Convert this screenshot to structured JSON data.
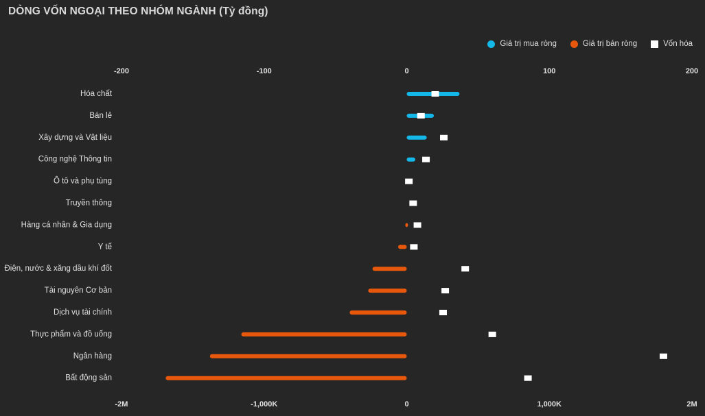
{
  "chart_data": {
    "type": "bar",
    "title": "DÒNG VỐN NGOẠI THEO NHÓM NGÀNH (Tỷ đồng)",
    "legend": [
      {
        "name": "Giá trị mua ròng",
        "color": "#14b8e8",
        "shape": "circle"
      },
      {
        "name": "Giá trị bán ròng",
        "color": "#e8580c",
        "shape": "circle"
      },
      {
        "name": "Vốn hóa",
        "color": "#ffffff",
        "shape": "square"
      }
    ],
    "top_axis": {
      "range": [
        -200,
        200
      ],
      "ticks": [
        "-200",
        "-100",
        "0",
        "100",
        "200"
      ],
      "tick_values": [
        -200,
        -100,
        0,
        100,
        200
      ]
    },
    "bottom_axis": {
      "range": [
        -2000,
        2000
      ],
      "ticks": [
        "-2M",
        "-1,000K",
        "0",
        "1,000K",
        "2M"
      ],
      "tick_values": [
        -2000,
        -1000,
        0,
        1000,
        2000
      ]
    },
    "categories": [
      "Hóa chất",
      "Bán lẻ",
      "Xây dựng và Vật liệu",
      "Công nghệ Thông tin",
      "Ô tô và phụ tùng",
      "Truyền thông",
      "Hàng cá nhân & Gia dụng",
      "Y tế",
      "Điện, nước & xăng dầu khí đốt",
      "Tài nguyên Cơ bản",
      "Dịch vụ tài chính",
      "Thực phẩm và đồ uống",
      "Ngân hàng",
      "Bất động sản"
    ],
    "series": [
      {
        "name": "Giá trị ròng",
        "values": [
          37,
          19,
          14,
          6,
          0,
          0,
          -1,
          -6,
          -24,
          -27,
          -40,
          -116,
          -138,
          -169
        ]
      },
      {
        "name": "Vốn hóa",
        "values": [
          200,
          100,
          260,
          135,
          15,
          45,
          75,
          50,
          410,
          270,
          255,
          600,
          1800,
          850
        ]
      }
    ]
  }
}
